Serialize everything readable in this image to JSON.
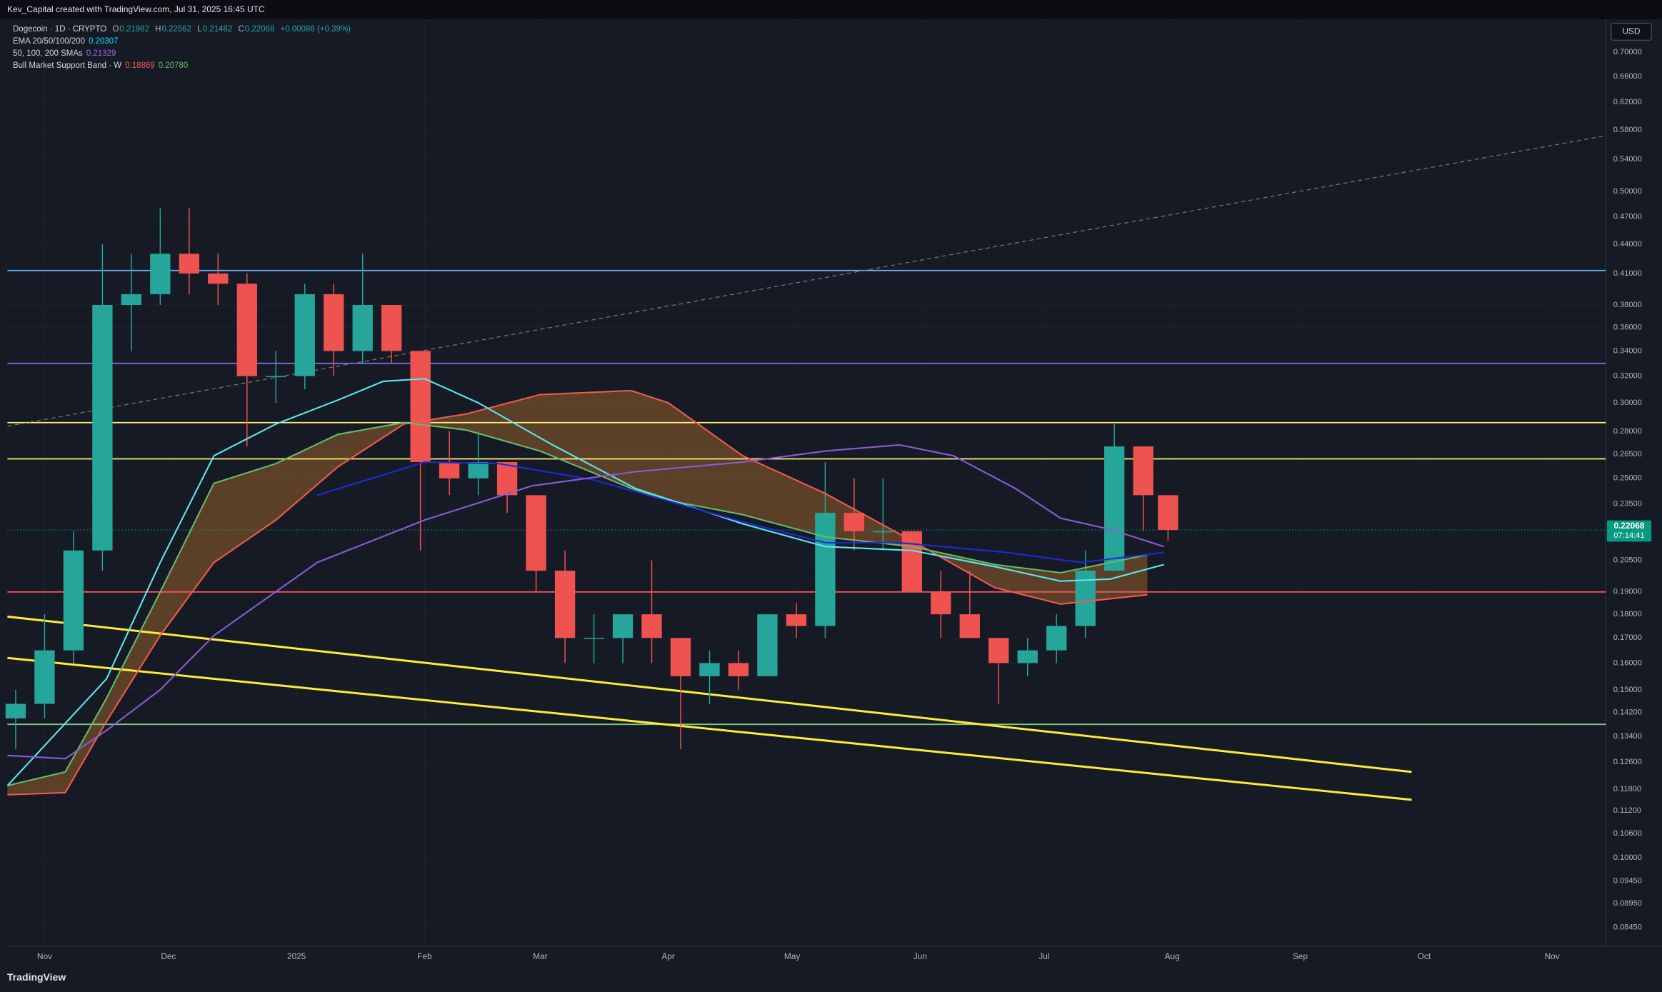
{
  "header": {
    "attribution": "Kev_Capital created with TradingView.com, Jul 31, 2025 16:45 UTC"
  },
  "chart_data": {
    "type": "candlestick",
    "title": "Dogecoin · 1D · CRYPTO",
    "ohlc_legend": {
      "open_label": "O",
      "open": "0.21982",
      "high_label": "H",
      "high": "0.22562",
      "low_label": "L",
      "low": "0.21482",
      "close_label": "C",
      "close": "0.22068",
      "change": "+0.00086 (+0.39%)"
    },
    "indicator_legend": [
      {
        "name": "EMA 20/50/100/200",
        "values": [
          "0.20307"
        ],
        "colors": [
          "#00e5ff"
        ]
      },
      {
        "name": "50, 100, 200 SMAs",
        "values": [
          "0.21329"
        ],
        "colors": [
          "#9c6ade"
        ]
      },
      {
        "name": "Bull Market Support Band · W",
        "values": [
          "0.18869",
          "0.20780"
        ],
        "colors": [
          "#f05a50",
          "#66bb6a"
        ]
      }
    ],
    "currency": "USD",
    "log_scale": true,
    "grid": true,
    "up_color": "#26a69a",
    "down_color": "#ef5350",
    "xlim": [
      -9,
      378
    ],
    "xticks": [
      {
        "value": 0,
        "label": "Nov"
      },
      {
        "value": 30,
        "label": "Dec"
      },
      {
        "value": 61,
        "label": "2025"
      },
      {
        "value": 92,
        "label": "Feb"
      },
      {
        "value": 120,
        "label": "Mar"
      },
      {
        "value": 151,
        "label": "Apr"
      },
      {
        "value": 181,
        "label": "May"
      },
      {
        "value": 212,
        "label": "Jun"
      },
      {
        "value": 242,
        "label": "Jul"
      },
      {
        "value": 273,
        "label": "Aug"
      },
      {
        "value": 304,
        "label": "Sep"
      },
      {
        "value": 334,
        "label": "Oct"
      },
      {
        "value": 365,
        "label": "Nov"
      }
    ],
    "ylim": [
      0.0807,
      0.758
    ],
    "yticks": [
      {
        "value": 0.7,
        "label": "0.70000"
      },
      {
        "value": 0.66,
        "label": "0.66000"
      },
      {
        "value": 0.62,
        "label": "0.62000"
      },
      {
        "value": 0.58,
        "label": "0.58000"
      },
      {
        "value": 0.54,
        "label": "0.54000"
      },
      {
        "value": 0.5,
        "label": "0.50000"
      },
      {
        "value": 0.47,
        "label": "0.47000"
      },
      {
        "value": 0.44,
        "label": "0.44000"
      },
      {
        "value": 0.41,
        "label": "0.41000"
      },
      {
        "value": 0.38,
        "label": "0.38000"
      },
      {
        "value": 0.36,
        "label": "0.36000"
      },
      {
        "value": 0.34,
        "label": "0.34000"
      },
      {
        "value": 0.32,
        "label": "0.32000"
      },
      {
        "value": 0.3,
        "label": "0.30000"
      },
      {
        "value": 0.28,
        "label": "0.28000"
      },
      {
        "value": 0.265,
        "label": "0.26500"
      },
      {
        "value": 0.25,
        "label": "0.25000"
      },
      {
        "value": 0.235,
        "label": "0.23500"
      },
      {
        "value": 0.205,
        "label": "0.20500"
      },
      {
        "value": 0.19,
        "label": "0.19000"
      },
      {
        "value": 0.18,
        "label": "0.18000"
      },
      {
        "value": 0.17,
        "label": "0.17000"
      },
      {
        "value": 0.16,
        "label": "0.16000"
      },
      {
        "value": 0.15,
        "label": "0.15000"
      },
      {
        "value": 0.142,
        "label": "0.14200"
      },
      {
        "value": 0.134,
        "label": "0.13400"
      },
      {
        "value": 0.126,
        "label": "0.12600"
      },
      {
        "value": 0.118,
        "label": "0.11800"
      },
      {
        "value": 0.112,
        "label": "0.11200"
      },
      {
        "value": 0.106,
        "label": "0.10600"
      },
      {
        "value": 0.1,
        "label": "0.10000"
      },
      {
        "value": 0.0945,
        "label": "0.09450"
      },
      {
        "value": 0.0895,
        "label": "0.08950"
      },
      {
        "value": 0.0845,
        "label": "0.08450"
      }
    ],
    "x": [
      -7,
      0,
      7,
      14,
      21,
      28,
      35,
      42,
      49,
      56,
      63,
      70,
      77,
      84,
      91,
      98,
      105,
      112,
      119,
      126,
      133,
      140,
      147,
      154,
      161,
      168,
      175,
      182,
      189,
      196,
      203,
      210,
      217,
      224,
      231,
      238,
      245,
      252,
      259,
      266,
      272
    ],
    "open": [
      0.14,
      0.145,
      0.165,
      0.21,
      0.38,
      0.39,
      0.43,
      0.41,
      0.4,
      0.32,
      0.32,
      0.39,
      0.34,
      0.38,
      0.34,
      0.26,
      0.25,
      0.26,
      0.24,
      0.2,
      0.17,
      0.17,
      0.18,
      0.17,
      0.155,
      0.16,
      0.155,
      0.18,
      0.175,
      0.23,
      0.22,
      0.22,
      0.19,
      0.18,
      0.17,
      0.16,
      0.165,
      0.175,
      0.2,
      0.27,
      0.24
    ],
    "high": [
      0.15,
      0.18,
      0.22,
      0.44,
      0.43,
      0.48,
      0.48,
      0.43,
      0.41,
      0.34,
      0.4,
      0.4,
      0.43,
      0.38,
      0.34,
      0.28,
      0.28,
      0.26,
      0.24,
      0.21,
      0.18,
      0.18,
      0.205,
      0.17,
      0.165,
      0.165,
      0.18,
      0.185,
      0.26,
      0.25,
      0.25,
      0.22,
      0.2,
      0.2,
      0.17,
      0.17,
      0.18,
      0.21,
      0.285,
      0.27,
      0.24
    ],
    "low": [
      0.13,
      0.14,
      0.16,
      0.2,
      0.34,
      0.38,
      0.39,
      0.38,
      0.27,
      0.3,
      0.31,
      0.32,
      0.33,
      0.33,
      0.21,
      0.24,
      0.24,
      0.23,
      0.19,
      0.16,
      0.16,
      0.16,
      0.16,
      0.13,
      0.145,
      0.15,
      0.155,
      0.17,
      0.17,
      0.21,
      0.21,
      0.19,
      0.17,
      0.17,
      0.145,
      0.155,
      0.16,
      0.17,
      0.2,
      0.22,
      0.215
    ],
    "close": [
      0.145,
      0.165,
      0.21,
      0.38,
      0.39,
      0.43,
      0.41,
      0.4,
      0.32,
      0.32,
      0.39,
      0.34,
      0.38,
      0.34,
      0.26,
      0.25,
      0.26,
      0.24,
      0.2,
      0.17,
      0.17,
      0.18,
      0.17,
      0.155,
      0.16,
      0.155,
      0.18,
      0.175,
      0.23,
      0.22,
      0.22,
      0.19,
      0.18,
      0.17,
      0.16,
      0.165,
      0.175,
      0.2,
      0.27,
      0.24,
      0.22068
    ],
    "series": [
      {
        "color": "#5ee7f0",
        "x": [
          -9,
          15,
          28,
          41,
          56,
          71,
          82,
          92,
          105,
          123,
          143,
          169,
          189,
          210,
          230,
          246,
          258,
          271
        ],
        "values": [
          0.119,
          0.154,
          0.204,
          0.264,
          0.285,
          0.302,
          0.316,
          0.318,
          0.3,
          0.271,
          0.244,
          0.224,
          0.212,
          0.21,
          0.202,
          0.195,
          0.196,
          0.203
        ]
      },
      {
        "color": "#1e2bd6",
        "x": [
          66,
          92,
          110,
          133,
          169,
          189,
          207,
          233,
          251,
          271
        ],
        "values": [
          0.24,
          0.26,
          0.259,
          0.249,
          0.225,
          0.214,
          0.214,
          0.209,
          0.204,
          0.209
        ]
      },
      {
        "color": "#8a5cd6",
        "x": [
          -9,
          5,
          15,
          28,
          41,
          66,
          92,
          118,
          143,
          169,
          189,
          207,
          220,
          235,
          246,
          258,
          271
        ],
        "values": [
          0.128,
          0.127,
          0.136,
          0.15,
          0.171,
          0.204,
          0.226,
          0.2455,
          0.254,
          0.26,
          0.267,
          0.271,
          0.264,
          0.244,
          0.227,
          0.221,
          0.212
        ]
      }
    ],
    "band": {
      "fill": "#8a5a2a",
      "sma_color": "#f05a50",
      "ema_color": "#66bb6a",
      "x": [
        -9,
        5,
        15,
        28,
        41,
        56,
        71,
        87,
        102,
        120,
        142,
        151,
        169,
        189,
        210,
        230,
        246,
        267
      ],
      "sma_values": [
        0.1164,
        0.117,
        0.139,
        0.171,
        0.204,
        0.226,
        0.257,
        0.285,
        0.292,
        0.306,
        0.309,
        0.3,
        0.264,
        0.241,
        0.215,
        0.192,
        0.1845,
        0.18869
      ],
      "ema_values": [
        0.119,
        0.123,
        0.147,
        0.19,
        0.247,
        0.259,
        0.278,
        0.286,
        0.281,
        0.267,
        0.244,
        0.237,
        0.229,
        0.217,
        0.212,
        0.203,
        0.199,
        0.2078
      ]
    },
    "levels": [
      {
        "value": 0.413,
        "color": "#64b5f6"
      },
      {
        "value": 0.33,
        "color": "#8e6ee8"
      },
      {
        "value": 0.286,
        "color": "#fff176"
      },
      {
        "value": 0.262,
        "color": "#fff176"
      },
      {
        "value": 0.19,
        "color": "#f0565a"
      },
      {
        "value": 0.138,
        "color": "#81c784"
      }
    ],
    "trendlines": [
      {
        "x": [
          -9,
          331
        ],
        "values": [
          0.179,
          0.123
        ],
        "color": "#ffeb3b",
        "dashed": false
      },
      {
        "x": [
          -9,
          331
        ],
        "values": [
          0.162,
          0.115
        ],
        "color": "#ffeb3b",
        "dashed": false
      },
      {
        "x": [
          -9,
          378
        ],
        "values": [
          0.2835,
          0.572
        ],
        "color": "#787b86",
        "dashed": true
      }
    ],
    "last_price": {
      "value": 0.22068,
      "label": "0.22068",
      "countdown": "07:14:41",
      "color": "#089981"
    }
  },
  "footer": {
    "brand": "TradingView"
  }
}
